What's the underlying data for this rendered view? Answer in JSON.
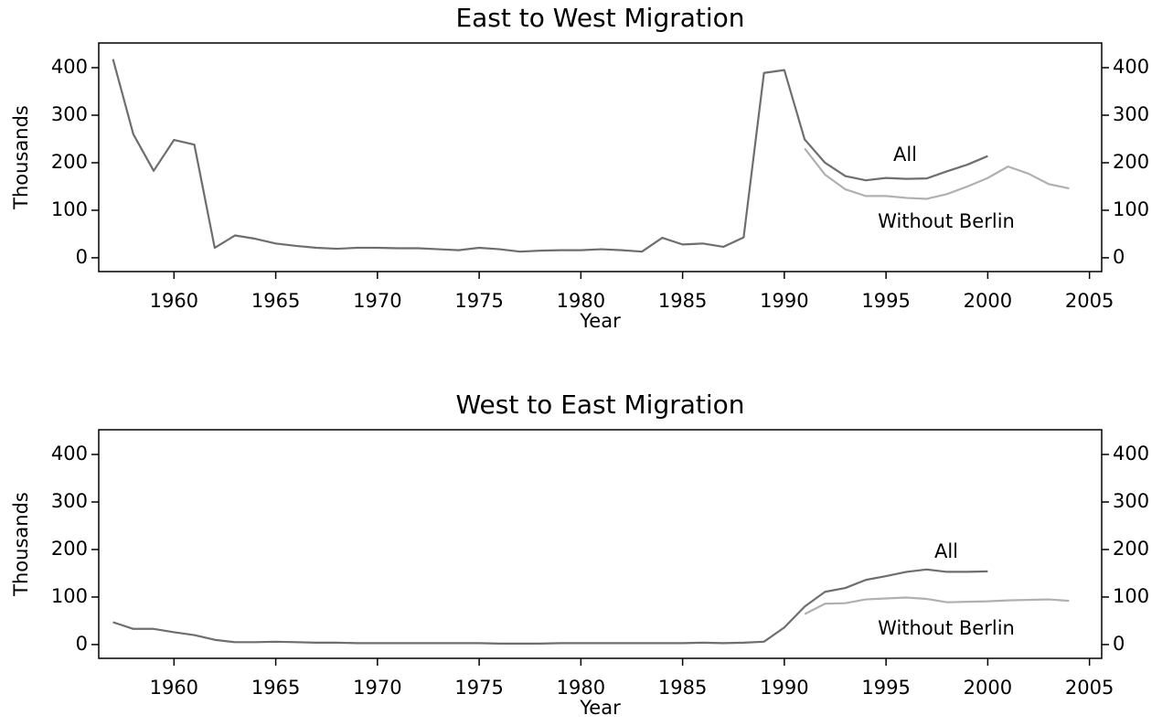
{
  "chart_data": [
    {
      "type": "line",
      "title": "East to West Migration",
      "x_label": "Year",
      "y_label": "Thousands",
      "x": [
        1957,
        1958,
        1959,
        1960,
        1961,
        1962,
        1963,
        1964,
        1965,
        1966,
        1967,
        1968,
        1969,
        1970,
        1971,
        1972,
        1973,
        1974,
        1975,
        1976,
        1977,
        1978,
        1979,
        1980,
        1981,
        1982,
        1983,
        1984,
        1985,
        1986,
        1987,
        1988,
        1989,
        1990,
        1991,
        1992,
        1993,
        1994,
        1995,
        1996,
        1997,
        1998,
        1999,
        2000,
        2001,
        2002,
        2003,
        2004
      ],
      "series": [
        {
          "name": "All",
          "color": "#6e6e6e",
          "values": [
            418,
            260,
            183,
            248,
            238,
            21,
            47,
            40,
            30,
            25,
            21,
            19,
            21,
            21,
            20,
            20,
            18,
            16,
            21,
            18,
            13,
            15,
            16,
            16,
            18,
            16,
            13,
            42,
            28,
            30,
            23,
            43,
            389,
            395,
            249,
            200,
            172,
            163,
            168,
            166,
            167,
            182,
            196,
            214,
            null,
            null,
            null,
            null
          ]
        },
        {
          "name": "Without Berlin",
          "color": "#b0b0b0",
          "values": [
            null,
            null,
            null,
            null,
            null,
            null,
            null,
            null,
            null,
            null,
            null,
            null,
            null,
            null,
            null,
            null,
            null,
            null,
            null,
            null,
            null,
            null,
            null,
            null,
            null,
            null,
            null,
            null,
            null,
            null,
            null,
            null,
            null,
            null,
            230,
            175,
            144,
            130,
            130,
            126,
            124,
            134,
            150,
            168,
            192,
            177,
            155,
            146
          ]
        }
      ],
      "xlim": [
        1956.3,
        2005.6
      ],
      "xticks": [
        1960,
        1965,
        1970,
        1975,
        1980,
        1985,
        1990,
        1995,
        2000,
        2005
      ],
      "ylim": [
        -29,
        452
      ],
      "yticks": [
        0,
        100,
        200,
        300,
        400
      ]
    },
    {
      "type": "line",
      "title": "West to East Migration",
      "x_label": "Year",
      "y_label": "Thousands",
      "x": [
        1957,
        1958,
        1959,
        1960,
        1961,
        1962,
        1963,
        1964,
        1965,
        1966,
        1967,
        1968,
        1969,
        1970,
        1971,
        1972,
        1973,
        1974,
        1975,
        1976,
        1977,
        1978,
        1979,
        1980,
        1981,
        1982,
        1983,
        1984,
        1985,
        1986,
        1987,
        1988,
        1989,
        1990,
        1991,
        1992,
        1993,
        1994,
        1995,
        1996,
        1997,
        1998,
        1999,
        2000,
        2001,
        2002,
        2003,
        2004
      ],
      "series": [
        {
          "name": "All",
          "color": "#6e6e6e",
          "values": [
            47,
            33,
            33,
            26,
            20,
            10,
            5,
            5,
            6,
            5,
            4,
            4,
            3,
            3,
            3,
            3,
            3,
            3,
            3,
            2,
            2,
            2,
            3,
            3,
            3,
            3,
            3,
            3,
            3,
            4,
            3,
            4,
            6,
            36,
            80,
            111,
            119,
            136,
            144,
            153,
            158,
            153,
            153,
            154,
            null,
            null,
            null,
            null
          ]
        },
        {
          "name": "Without Berlin",
          "color": "#b0b0b0",
          "values": [
            null,
            null,
            null,
            null,
            null,
            null,
            null,
            null,
            null,
            null,
            null,
            null,
            null,
            null,
            null,
            null,
            null,
            null,
            null,
            null,
            null,
            null,
            null,
            null,
            null,
            null,
            null,
            null,
            null,
            null,
            null,
            null,
            null,
            null,
            64,
            86,
            87,
            95,
            97,
            99,
            96,
            89,
            90,
            91,
            93,
            94,
            95,
            92
          ]
        }
      ],
      "xlim": [
        1956.3,
        2005.6
      ],
      "xticks": [
        1960,
        1965,
        1970,
        1975,
        1980,
        1985,
        1990,
        1995,
        2000,
        2005
      ],
      "ylim": [
        -29,
        452
      ],
      "yticks": [
        0,
        100,
        200,
        300,
        400
      ]
    }
  ]
}
